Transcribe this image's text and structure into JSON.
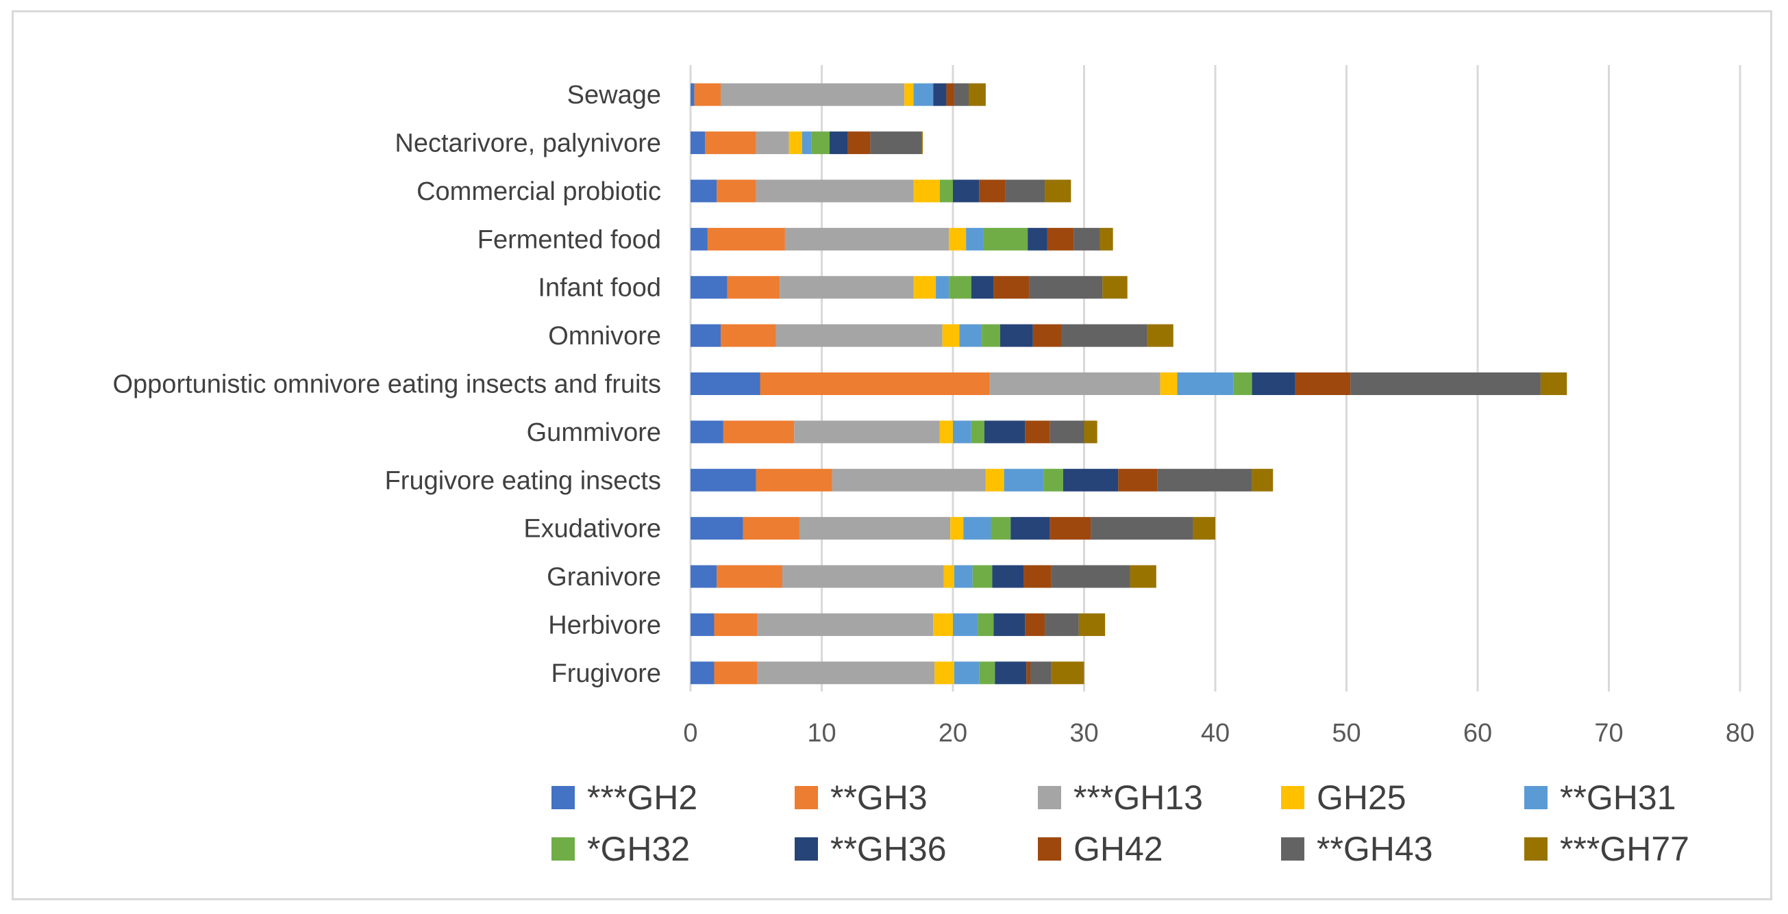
{
  "chart_data": {
    "type": "stacked-bar-horizontal",
    "title": "",
    "xlabel": "",
    "ylabel": "",
    "xlim": [
      0,
      80
    ],
    "xticks": [
      0,
      10,
      20,
      30,
      40,
      50,
      60,
      70,
      80
    ],
    "grid": true,
    "legend_position": "bottom",
    "categories": [
      "Sewage",
      "Nectarivore, palynivore",
      "Commercial probiotic",
      "Fermented food",
      "Infant food",
      "Omnivore",
      "Opportunistic omnivore eating insects and fruits",
      "Gummivore",
      "Frugivore eating insects",
      "Exudativore",
      "Granivore",
      "Herbivore",
      "Frugivore"
    ],
    "series": [
      {
        "name": "***GH2",
        "color": "#4472C4",
        "values": [
          0.3,
          1.1,
          2.0,
          1.3,
          2.8,
          2.3,
          5.3,
          2.5,
          5.0,
          4.0,
          2.0,
          1.8,
          1.8
        ]
      },
      {
        "name": "**GH3",
        "color": "#ED7D31",
        "values": [
          2.0,
          3.9,
          3.0,
          5.9,
          4.0,
          4.2,
          17.5,
          5.4,
          5.8,
          4.3,
          5.0,
          3.3,
          3.3
        ]
      },
      {
        "name": "***GH13",
        "color": "#A5A5A5",
        "values": [
          14.0,
          2.5,
          12.0,
          12.5,
          10.2,
          12.7,
          13.0,
          11.1,
          11.7,
          11.5,
          12.3,
          13.4,
          13.5
        ]
      },
      {
        "name": "GH25",
        "color": "#FFC000",
        "values": [
          0.7,
          1.0,
          2.0,
          1.3,
          1.7,
          1.3,
          1.3,
          1.0,
          1.4,
          1.0,
          0.8,
          1.5,
          1.5
        ]
      },
      {
        "name": "**GH31",
        "color": "#5B9BD5",
        "values": [
          1.5,
          0.7,
          0.0,
          1.3,
          1.0,
          1.7,
          4.3,
          1.4,
          3.0,
          2.1,
          1.4,
          1.9,
          1.9
        ]
      },
      {
        "name": "*GH32",
        "color": "#70AD47",
        "values": [
          0.0,
          1.4,
          1.0,
          3.4,
          1.7,
          1.4,
          1.4,
          1.0,
          1.5,
          1.5,
          1.5,
          1.2,
          1.2
        ]
      },
      {
        "name": "**GH36",
        "color": "#264478",
        "values": [
          1.0,
          1.4,
          2.0,
          1.5,
          1.7,
          2.5,
          3.3,
          3.1,
          4.2,
          3.0,
          2.4,
          2.4,
          2.4
        ]
      },
      {
        "name": "GH42",
        "color": "#9E480E",
        "values": [
          0.6,
          1.7,
          2.0,
          2.0,
          2.7,
          2.2,
          4.2,
          1.9,
          3.0,
          3.1,
          2.1,
          1.5,
          0.3
        ]
      },
      {
        "name": "**GH43",
        "color": "#636363",
        "values": [
          1.1,
          3.9,
          3.0,
          2.0,
          5.6,
          6.5,
          14.5,
          2.6,
          7.2,
          7.8,
          6.0,
          2.6,
          1.6
        ]
      },
      {
        "name": "***GH77",
        "color": "#997300",
        "values": [
          1.3,
          0.1,
          2.0,
          1.0,
          1.9,
          2.0,
          2.0,
          1.0,
          1.6,
          1.7,
          2.0,
          2.0,
          2.5
        ]
      }
    ]
  }
}
